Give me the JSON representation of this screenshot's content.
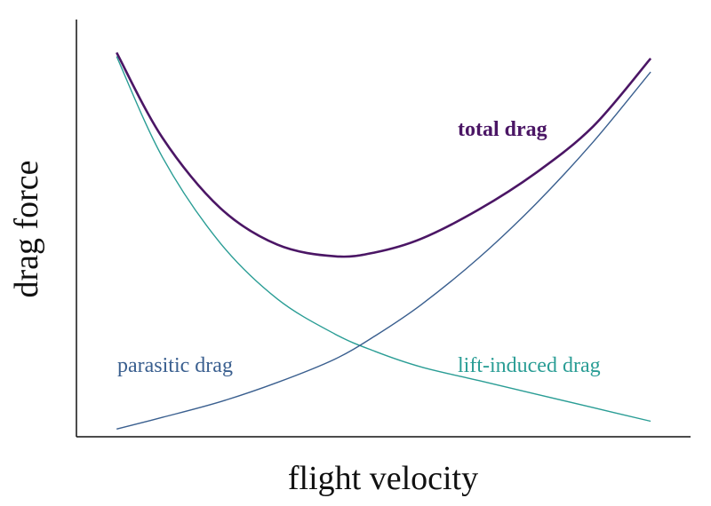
{
  "chart_data": {
    "type": "line",
    "title": "",
    "xlabel": "flight velocity",
    "ylabel": "drag force",
    "xlim": [
      0,
      10
    ],
    "ylim": [
      0,
      10
    ],
    "grid": false,
    "legend": "none",
    "x": [
      0.7,
      1.5,
      2.5,
      3.5,
      4.5,
      5.2,
      6.0,
      7.0,
      8.0,
      9.0,
      10.0
    ],
    "series": [
      {
        "name": "lift-induced drag",
        "color": "#2a9d95",
        "values": [
          9.8,
          7.2,
          5.0,
          3.55,
          2.65,
          2.2,
          1.8,
          1.45,
          1.1,
          0.75,
          0.4
        ]
      },
      {
        "name": "parasitic drag",
        "color": "#3a5f8f",
        "values": [
          0.2,
          0.5,
          0.9,
          1.4,
          2.0,
          2.6,
          3.4,
          4.6,
          6.0,
          7.6,
          9.4
        ]
      },
      {
        "name": "total drag",
        "color": "#4b1665",
        "values": [
          9.9,
          7.7,
          5.9,
          4.95,
          4.65,
          4.75,
          5.1,
          5.85,
          6.8,
          8.0,
          9.75
        ]
      }
    ],
    "annotations": [
      {
        "text": "total drag",
        "color": "#4b1665",
        "bold": true
      },
      {
        "text": "parasitic drag",
        "color": "#3a5f8f",
        "bold": false
      },
      {
        "text": "lift-induced drag",
        "color": "#2a9d95",
        "bold": false
      }
    ]
  }
}
